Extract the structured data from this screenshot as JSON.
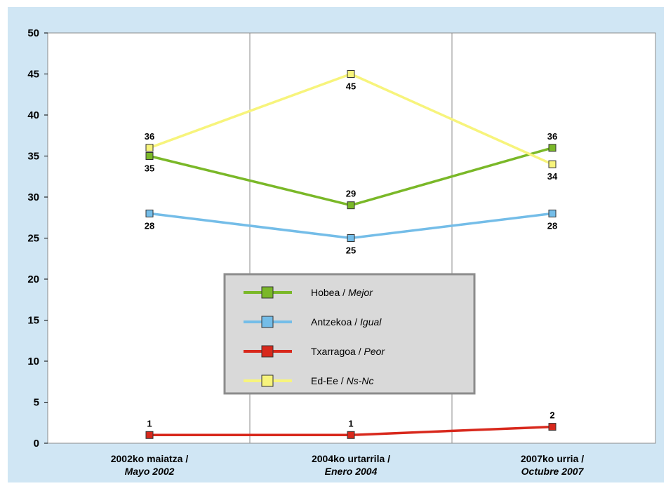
{
  "chart_data": {
    "type": "line",
    "categories": [
      {
        "line1": "2002ko maiatza /",
        "line2": "Mayo 2002"
      },
      {
        "line1": "2004ko urtarrila /",
        "line2": "Enero 2004"
      },
      {
        "line1": "2007ko urria /",
        "line2": "Octubre 2007"
      }
    ],
    "ylim": [
      0,
      50
    ],
    "yticks": [
      0,
      5,
      10,
      15,
      20,
      25,
      30,
      35,
      40,
      45,
      50
    ],
    "grid": "vertical",
    "legend_position": "center",
    "series": [
      {
        "name": "Hobea",
        "name_it": "Mejor",
        "color": "#7ab828",
        "values": [
          35,
          29,
          36
        ],
        "label_pos": [
          "below",
          "above",
          "above"
        ]
      },
      {
        "name": "Antzekoa",
        "name_it": "Igual",
        "color": "#74bde8",
        "values": [
          28,
          25,
          28
        ],
        "label_pos": [
          "below",
          "below",
          "below"
        ]
      },
      {
        "name": "Txarragoa",
        "name_it": "Peor",
        "color": "#d8281c",
        "values": [
          1,
          1,
          2
        ],
        "label_pos": [
          "above",
          "above",
          "above"
        ]
      },
      {
        "name": "Ed-Ee",
        "name_it": "Ns-Nc",
        "color": "#f7f47c",
        "values": [
          36,
          45,
          34
        ],
        "label_pos": [
          "above",
          "below",
          "below"
        ]
      }
    ]
  }
}
